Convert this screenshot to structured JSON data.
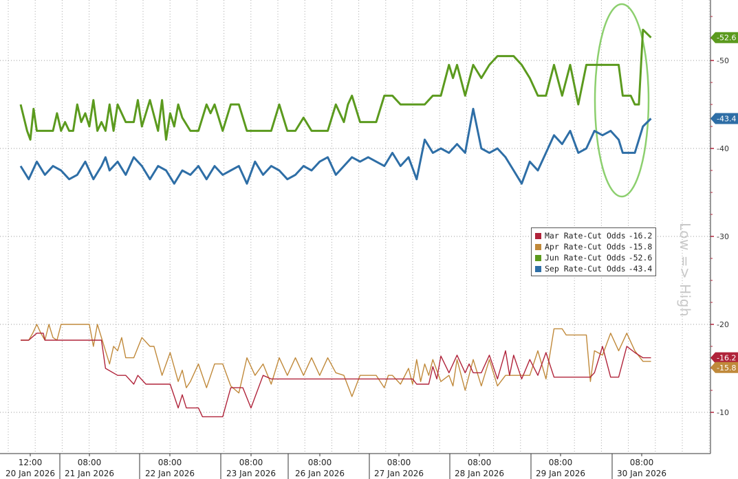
{
  "chart_data": {
    "type": "line",
    "ylabel": "Low => High",
    "ylim": [
      7.5,
      57.5
    ],
    "y_ticks": [
      10,
      20,
      30,
      40,
      50
    ],
    "grid": true,
    "legend_position": "center-right",
    "x_ticks": [
      {
        "time": "12:00",
        "date": "20 Jan 2026"
      },
      {
        "time": "08:00",
        "date": "21 Jan 2026"
      },
      {
        "time": "08:00",
        "date": "22 Jan 2026"
      },
      {
        "time": "08:00",
        "date": "23 Jan 2026"
      },
      {
        "time": "08:00",
        "date": "26 Jan 2026"
      },
      {
        "time": "08:00",
        "date": "27 Jan 2026"
      },
      {
        "time": "08:00",
        "date": "28 Jan 2026"
      },
      {
        "time": "08:00",
        "date": "29 Jan 2026"
      },
      {
        "time": "08:00",
        "date": "30 Jan 2026"
      }
    ],
    "series": [
      {
        "name": "Mar Rate-Cut Odds",
        "last": "-16.2",
        "color": "#b0233a",
        "x": [
          0,
          0.1,
          0.2,
          0.28,
          0.3,
          0.45,
          0.5,
          0.55,
          0.6,
          0.7,
          0.85,
          1.0,
          1.05,
          1.2,
          1.3,
          1.4,
          1.45,
          1.55,
          1.6,
          1.7,
          1.85,
          1.95,
          2.0,
          2.05,
          2.1,
          2.2,
          2.25,
          2.3,
          2.4,
          2.5,
          2.6,
          2.65,
          2.75,
          2.85,
          3.0,
          3.1,
          3.3,
          3.6,
          3.8,
          4.0,
          4.2,
          4.4,
          4.5,
          4.6,
          4.7,
          4.75,
          4.8,
          4.85,
          4.9,
          4.95,
          5.0,
          5.05,
          5.1,
          5.15,
          5.2,
          5.3,
          5.4,
          5.5,
          5.55,
          5.6,
          5.65,
          5.7,
          5.8,
          5.9,
          6.0,
          6.05,
          6.1,
          6.2,
          6.3,
          6.4,
          6.5,
          6.6,
          6.7,
          6.8,
          6.9,
          7.0,
          7.05,
          7.1,
          7.2,
          7.3,
          7.4,
          7.5,
          7.6,
          7.7,
          7.8
        ],
        "values": [
          18.2,
          18.2,
          19.0,
          19.0,
          18.2,
          18.2,
          18.2,
          18.2,
          18.2,
          18.2,
          18.2,
          18.2,
          15.0,
          14.2,
          14.2,
          13.2,
          14.2,
          13.2,
          13.2,
          13.2,
          13.2,
          10.5,
          12.0,
          10.5,
          10.5,
          10.5,
          9.5,
          9.5,
          9.5,
          9.5,
          12.8,
          12.8,
          12.8,
          10.5,
          14.2,
          13.8,
          13.8,
          13.8,
          13.8,
          13.8,
          13.8,
          13.8,
          13.8,
          13.8,
          13.8,
          13.8,
          13.8,
          13.8,
          13.2,
          13.2,
          13.2,
          13.2,
          15.2,
          13.8,
          16.4,
          14.5,
          16.5,
          14.5,
          15.5,
          14.5,
          14.5,
          14.5,
          16.5,
          13.8,
          17.0,
          14.2,
          16.5,
          13.8,
          16.0,
          14.2,
          16.8,
          14.0,
          14.0,
          14.0,
          14.0,
          14.0,
          14.0,
          14.5,
          17.5,
          14.0,
          14.0,
          17.5,
          16.8,
          16.2,
          16.2
        ]
      },
      {
        "name": "Apr Rate-Cut Odds",
        "last": "-15.8",
        "color": "#c0893a",
        "x": [
          0,
          0.1,
          0.15,
          0.2,
          0.25,
          0.3,
          0.35,
          0.4,
          0.45,
          0.5,
          0.55,
          0.6,
          0.65,
          0.75,
          0.85,
          0.9,
          0.95,
          1.0,
          1.05,
          1.1,
          1.15,
          1.2,
          1.25,
          1.3,
          1.4,
          1.5,
          1.6,
          1.65,
          1.75,
          1.85,
          1.95,
          2.0,
          2.05,
          2.1,
          2.2,
          2.3,
          2.4,
          2.5,
          2.6,
          2.7,
          2.8,
          2.9,
          3.0,
          3.1,
          3.2,
          3.3,
          3.4,
          3.5,
          3.6,
          3.7,
          3.8,
          3.9,
          4.0,
          4.1,
          4.2,
          4.3,
          4.4,
          4.5,
          4.55,
          4.6,
          4.7,
          4.8,
          4.85,
          4.9,
          4.95,
          5.0,
          5.05,
          5.1,
          5.2,
          5.3,
          5.35,
          5.4,
          5.5,
          5.6,
          5.7,
          5.8,
          5.9,
          6.0,
          6.1,
          6.2,
          6.3,
          6.4,
          6.5,
          6.6,
          6.7,
          6.75,
          6.8,
          6.9,
          7.0,
          7.05,
          7.1,
          7.2,
          7.3,
          7.4,
          7.5,
          7.6,
          7.7,
          7.8
        ],
        "values": [
          18.2,
          18.2,
          19.0,
          20.0,
          19.0,
          18.2,
          20.0,
          18.5,
          18.2,
          20.0,
          20.0,
          20.0,
          20.0,
          20.0,
          20.0,
          17.5,
          20.0,
          18.5,
          17.0,
          15.5,
          17.5,
          17.0,
          18.5,
          16.2,
          16.2,
          18.5,
          17.5,
          17.5,
          14.2,
          16.8,
          13.5,
          14.8,
          12.8,
          13.5,
          15.5,
          12.8,
          15.5,
          15.5,
          13.0,
          12.2,
          16.2,
          14.2,
          15.5,
          13.2,
          16.2,
          14.2,
          16.2,
          14.2,
          16.2,
          14.2,
          16.2,
          14.5,
          14.2,
          11.8,
          14.2,
          14.2,
          14.2,
          12.8,
          14.2,
          14.2,
          13.2,
          15.0,
          13.2,
          16.0,
          13.5,
          15.5,
          14.2,
          16.0,
          13.5,
          14.2,
          13.0,
          16.0,
          12.5,
          16.0,
          13.0,
          16.0,
          13.0,
          14.2,
          14.2,
          14.2,
          14.2,
          17.0,
          13.8,
          19.5,
          19.5,
          18.8,
          18.8,
          18.8,
          18.8,
          13.5,
          17.0,
          16.5,
          19.0,
          17.0,
          19.0,
          17.0,
          15.8,
          15.8
        ]
      },
      {
        "name": "Jun Rate-Cut Odds",
        "last": "-52.6",
        "color": "#5b9a1e",
        "x": [
          0,
          0.08,
          0.12,
          0.16,
          0.2,
          0.3,
          0.4,
          0.45,
          0.5,
          0.55,
          0.6,
          0.65,
          0.7,
          0.75,
          0.8,
          0.85,
          0.9,
          0.95,
          1.0,
          1.05,
          1.1,
          1.15,
          1.2,
          1.3,
          1.4,
          1.45,
          1.5,
          1.6,
          1.7,
          1.75,
          1.8,
          1.85,
          1.9,
          1.95,
          2.0,
          2.1,
          2.2,
          2.3,
          2.35,
          2.4,
          2.5,
          2.6,
          2.7,
          2.8,
          2.9,
          3.0,
          3.1,
          3.2,
          3.3,
          3.4,
          3.5,
          3.6,
          3.7,
          3.8,
          3.9,
          4.0,
          4.05,
          4.1,
          4.2,
          4.3,
          4.4,
          4.5,
          4.6,
          4.7,
          4.8,
          4.9,
          5.0,
          5.1,
          5.2,
          5.3,
          5.35,
          5.4,
          5.5,
          5.6,
          5.7,
          5.8,
          5.9,
          6.0,
          6.1,
          6.2,
          6.3,
          6.4,
          6.5,
          6.6,
          6.7,
          6.8,
          6.9,
          7.0,
          7.1,
          7.2,
          7.3,
          7.4,
          7.45,
          7.5,
          7.55,
          7.6,
          7.65,
          7.7,
          7.8
        ],
        "values": [
          45.0,
          42.0,
          41.0,
          44.5,
          42.0,
          42.0,
          42.0,
          44.0,
          42.0,
          43.0,
          42.0,
          42.0,
          45.0,
          43.0,
          44.0,
          42.5,
          45.5,
          42.0,
          43.0,
          42.0,
          45.0,
          42.0,
          45.0,
          43.0,
          43.0,
          45.5,
          42.5,
          45.5,
          42.0,
          45.5,
          41.0,
          44.0,
          42.5,
          45.0,
          43.5,
          42.0,
          42.0,
          45.0,
          44.0,
          45.0,
          42.0,
          45.0,
          45.0,
          42.0,
          42.0,
          42.0,
          42.0,
          45.0,
          42.0,
          42.0,
          43.5,
          42.0,
          42.0,
          42.0,
          45.0,
          43.0,
          45.0,
          46.0,
          43.0,
          43.0,
          43.0,
          46.0,
          46.0,
          45.0,
          45.0,
          45.0,
          45.0,
          46.0,
          46.0,
          49.5,
          48.0,
          49.5,
          46.0,
          49.5,
          48.0,
          49.5,
          50.5,
          50.5,
          50.5,
          49.5,
          48.0,
          46.0,
          46.0,
          49.5,
          46.0,
          49.5,
          45.0,
          49.5,
          49.5,
          49.5,
          49.5,
          49.5,
          46.0,
          46.0,
          46.0,
          45.0,
          45.0,
          53.5,
          52.6
        ]
      },
      {
        "name": "Sep Rate-Cut Odds",
        "last": "-43.4",
        "color": "#2e6ea6",
        "x": [
          0,
          0.1,
          0.2,
          0.3,
          0.4,
          0.5,
          0.6,
          0.7,
          0.8,
          0.9,
          1.0,
          1.05,
          1.1,
          1.2,
          1.3,
          1.4,
          1.5,
          1.6,
          1.7,
          1.8,
          1.9,
          2.0,
          2.1,
          2.2,
          2.3,
          2.4,
          2.5,
          2.6,
          2.7,
          2.8,
          2.9,
          3.0,
          3.1,
          3.2,
          3.3,
          3.4,
          3.5,
          3.6,
          3.7,
          3.8,
          3.9,
          4.0,
          4.1,
          4.2,
          4.3,
          4.4,
          4.5,
          4.6,
          4.7,
          4.8,
          4.9,
          5.0,
          5.1,
          5.2,
          5.3,
          5.4,
          5.5,
          5.6,
          5.7,
          5.8,
          5.9,
          6.0,
          6.1,
          6.2,
          6.3,
          6.4,
          6.5,
          6.6,
          6.7,
          6.8,
          6.9,
          7.0,
          7.1,
          7.2,
          7.3,
          7.4,
          7.45,
          7.5,
          7.55,
          7.6,
          7.7,
          7.8
        ],
        "values": [
          38.0,
          36.5,
          38.5,
          37.0,
          38.0,
          37.5,
          36.5,
          37.0,
          38.5,
          36.5,
          38.0,
          39.0,
          37.5,
          38.5,
          37.0,
          39.0,
          38.0,
          36.5,
          38.0,
          37.5,
          36.0,
          37.5,
          37.0,
          38.0,
          36.5,
          38.0,
          37.0,
          37.5,
          38.0,
          36.0,
          38.5,
          37.0,
          38.0,
          37.5,
          36.5,
          37.0,
          38.0,
          37.5,
          38.5,
          39.0,
          37.0,
          38.0,
          39.0,
          38.5,
          39.0,
          38.5,
          38.0,
          39.5,
          38.0,
          39.0,
          36.5,
          41.0,
          39.5,
          40.0,
          39.5,
          40.5,
          39.5,
          44.5,
          40.0,
          39.5,
          40.0,
          39.0,
          37.5,
          36.0,
          38.5,
          37.5,
          39.5,
          41.5,
          40.5,
          42.0,
          39.5,
          40.0,
          42.0,
          41.5,
          42.0,
          41.0,
          39.5,
          39.5,
          39.5,
          39.5,
          42.5,
          43.4
        ]
      }
    ]
  }
}
